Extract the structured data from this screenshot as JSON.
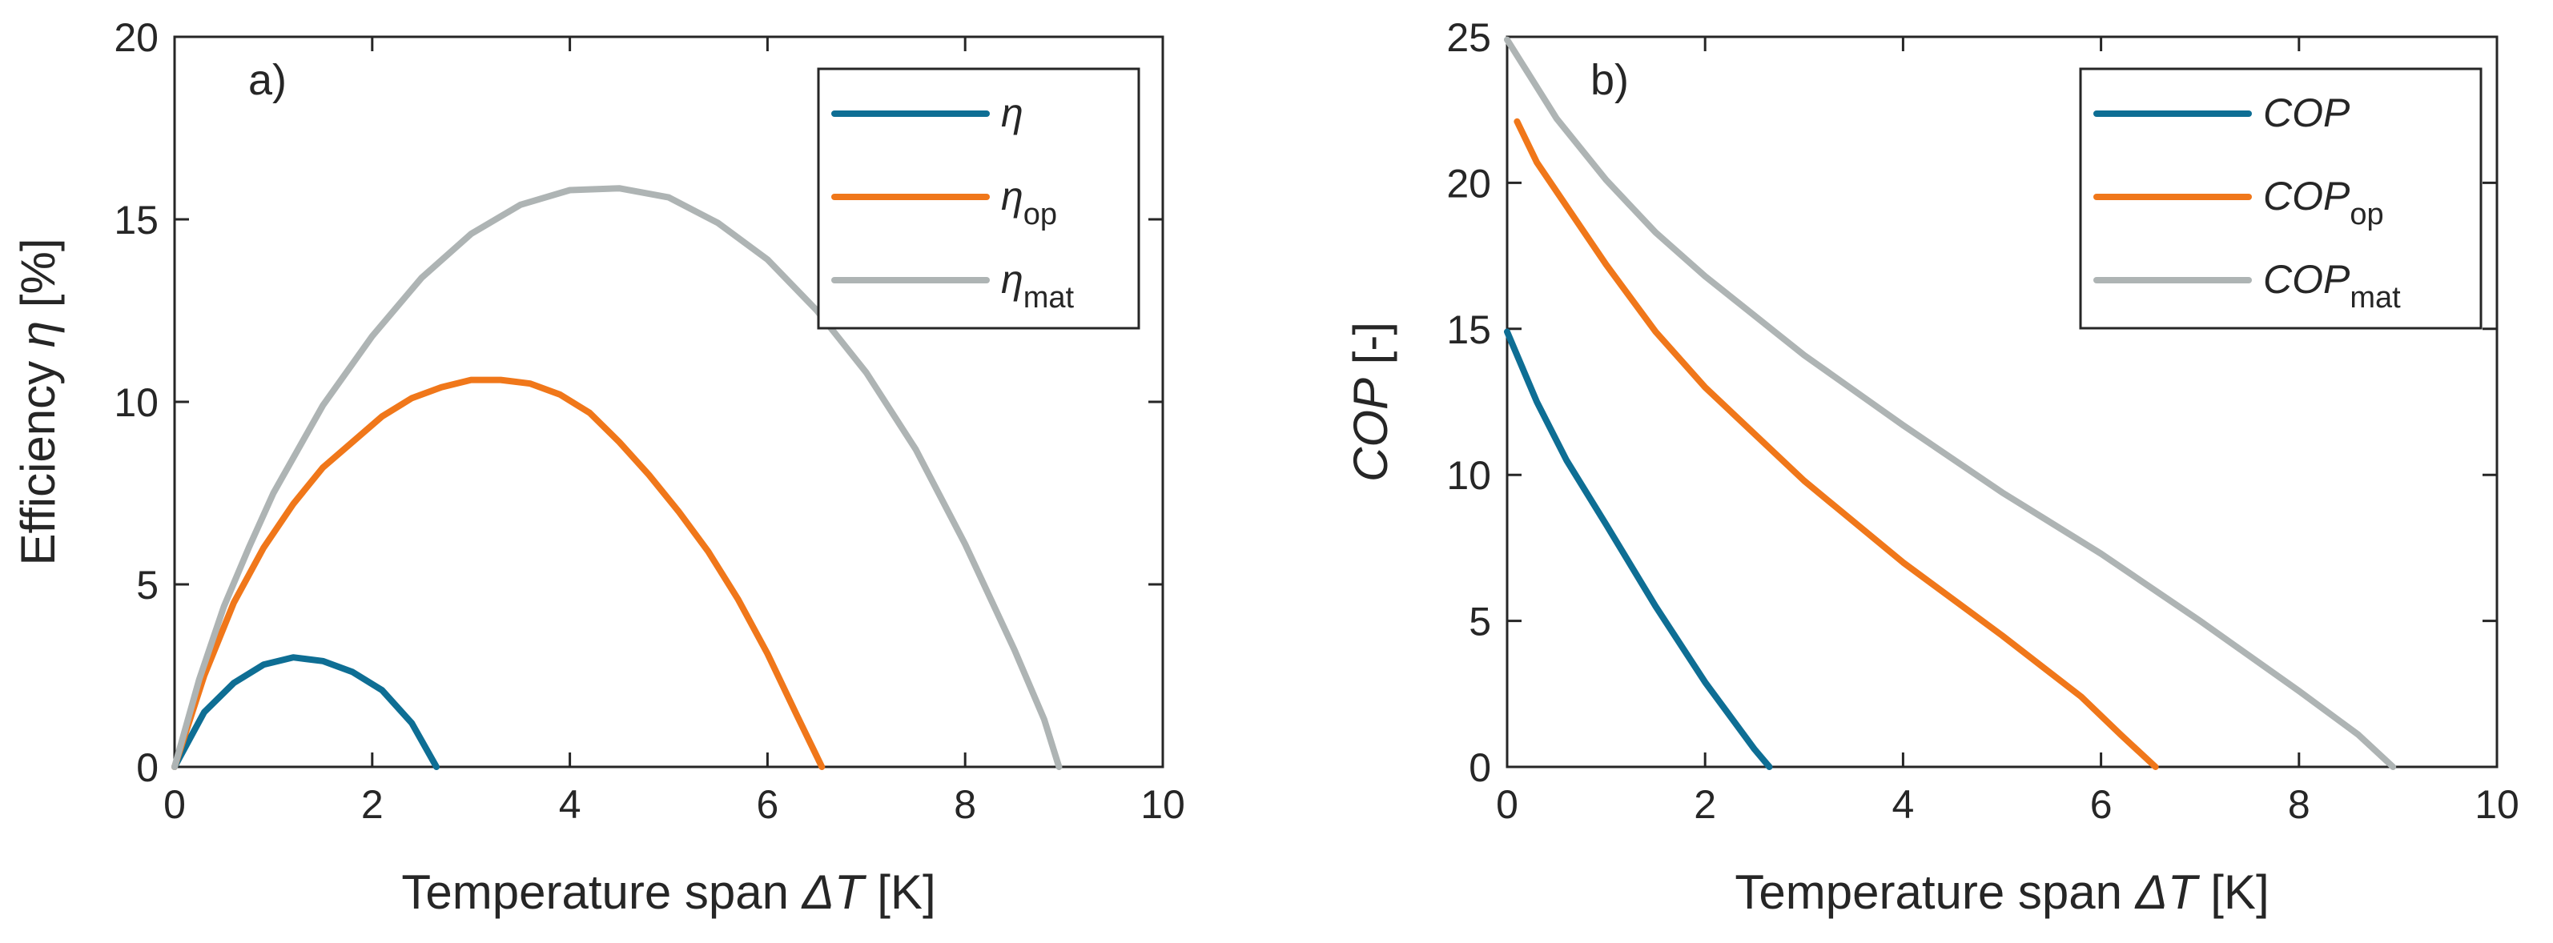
{
  "chart_data": [
    {
      "type": "line",
      "panel_label": "a)",
      "xlabel": {
        "pre": "Temperature span ",
        "sym": "ΔT",
        "post": " [K]"
      },
      "ylabel": {
        "pre": "Efficiency ",
        "sym": "η",
        "post": " [%]"
      },
      "xlim": [
        0,
        10
      ],
      "ylim": [
        0,
        20
      ],
      "xticks": [
        0,
        2,
        4,
        6,
        8,
        10
      ],
      "yticks": [
        0,
        5,
        10,
        15,
        20
      ],
      "legend_position": "top-right",
      "series": [
        {
          "name": "η",
          "sub": "",
          "color": "#0e6e94",
          "x": [
            0,
            0.3,
            0.6,
            0.9,
            1.2,
            1.5,
            1.8,
            2.1,
            2.4,
            2.65
          ],
          "y": [
            0,
            1.5,
            2.3,
            2.8,
            3.0,
            2.9,
            2.6,
            2.1,
            1.2,
            0
          ]
        },
        {
          "name": "η",
          "sub": "op",
          "color": "#f0771a",
          "x": [
            0,
            0.3,
            0.6,
            0.9,
            1.2,
            1.5,
            1.8,
            2.1,
            2.4,
            2.7,
            3.0,
            3.3,
            3.6,
            3.9,
            4.2,
            4.5,
            4.8,
            5.1,
            5.4,
            5.7,
            6.0,
            6.3,
            6.55
          ],
          "y": [
            0,
            2.5,
            4.5,
            6.0,
            7.2,
            8.2,
            8.9,
            9.6,
            10.1,
            10.4,
            10.6,
            10.6,
            10.5,
            10.2,
            9.7,
            8.9,
            8.0,
            7.0,
            5.9,
            4.6,
            3.1,
            1.4,
            0
          ]
        },
        {
          "name": "η",
          "sub": "mat",
          "color": "#aeb4b4",
          "x": [
            0,
            0.25,
            0.5,
            0.75,
            1.0,
            1.5,
            2.0,
            2.5,
            3.0,
            3.5,
            4.0,
            4.5,
            5.0,
            5.5,
            6.0,
            6.5,
            7.0,
            7.5,
            8.0,
            8.5,
            8.8,
            8.95
          ],
          "y": [
            0,
            2.4,
            4.4,
            6.0,
            7.5,
            9.9,
            11.8,
            13.4,
            14.6,
            15.4,
            15.8,
            15.85,
            15.6,
            14.9,
            13.9,
            12.5,
            10.8,
            8.7,
            6.1,
            3.2,
            1.3,
            0
          ]
        }
      ]
    },
    {
      "type": "line",
      "panel_label": "b)",
      "xlabel": {
        "pre": "Temperature span ",
        "sym": "ΔT",
        "post": " [K]"
      },
      "ylabel": {
        "pre": "",
        "sym": "COP",
        "post": " [-]"
      },
      "xlim": [
        0,
        10
      ],
      "ylim": [
        0,
        25
      ],
      "xticks": [
        0,
        2,
        4,
        6,
        8,
        10
      ],
      "yticks": [
        0,
        5,
        10,
        15,
        20,
        25
      ],
      "legend_position": "top-right",
      "series": [
        {
          "name": "COP",
          "sub": "",
          "color": "#0e6e94",
          "x": [
            0,
            0.3,
            0.6,
            1.0,
            1.5,
            2.0,
            2.5,
            2.65
          ],
          "y": [
            14.9,
            12.5,
            10.5,
            8.3,
            5.5,
            2.9,
            0.6,
            0
          ]
        },
        {
          "name": "COP",
          "sub": "op",
          "color": "#f0771a",
          "x": [
            0.1,
            0.3,
            0.6,
            1.0,
            1.5,
            2.0,
            3.0,
            4.0,
            5.0,
            5.8,
            6.2,
            6.55
          ],
          "y": [
            22.1,
            20.7,
            19.2,
            17.2,
            14.9,
            13.0,
            9.8,
            7.0,
            4.5,
            2.4,
            1.1,
            0
          ]
        },
        {
          "name": "COP",
          "sub": "mat",
          "color": "#aeb4b4",
          "x": [
            0,
            0.5,
            1.0,
            1.5,
            2.0,
            3.0,
            4.0,
            5.0,
            6.0,
            7.0,
            8.0,
            8.6,
            8.95
          ],
          "y": [
            24.9,
            22.2,
            20.1,
            18.3,
            16.8,
            14.1,
            11.7,
            9.4,
            7.3,
            5.0,
            2.6,
            1.1,
            0
          ]
        }
      ]
    }
  ]
}
